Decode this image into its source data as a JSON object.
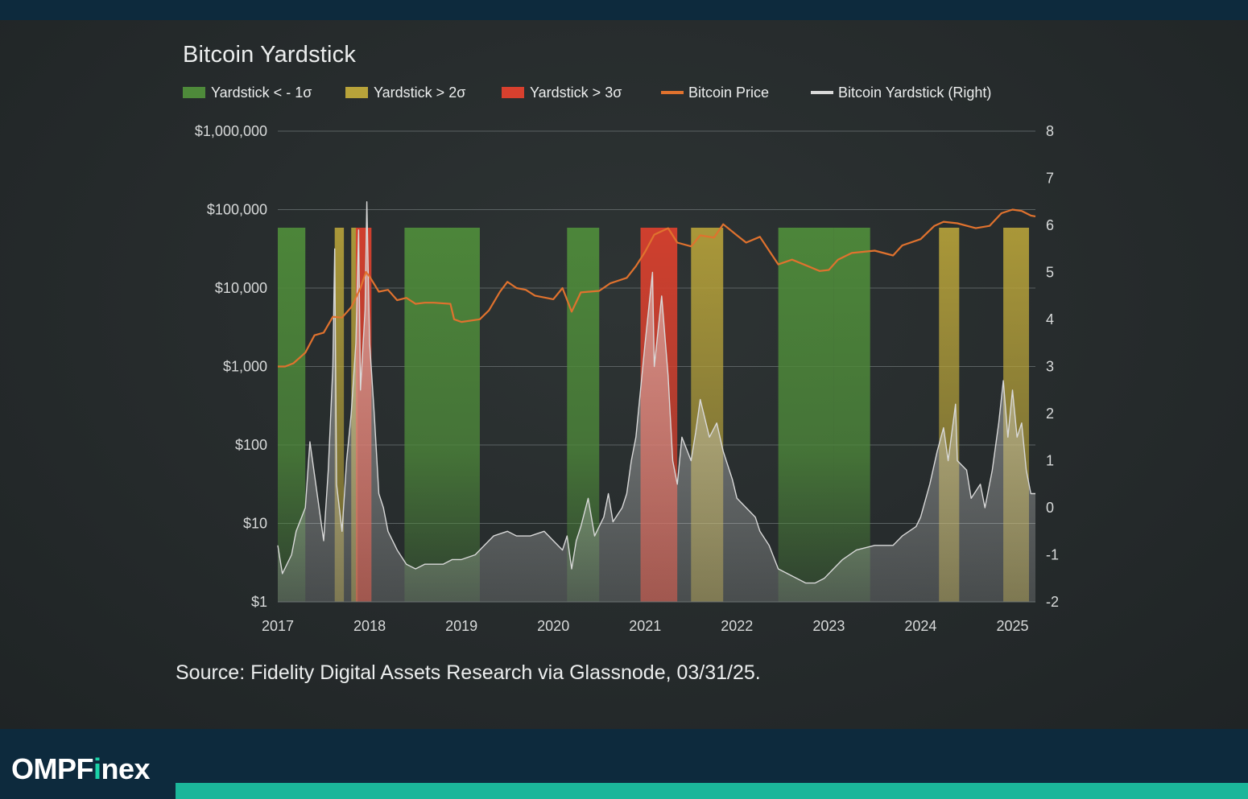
{
  "chart_title": "Bitcoin Yardstick",
  "legend": [
    {
      "label": "Yardstick < - 1σ",
      "kind": "box",
      "color": "#4e8a3a"
    },
    {
      "label": "Yardstick > 2σ",
      "kind": "box",
      "color": "#b8a33a"
    },
    {
      "label": "Yardstick > 3σ",
      "kind": "box",
      "color": "#d8402e"
    },
    {
      "label": "Bitcoin Price",
      "kind": "line",
      "color": "#e0722e"
    },
    {
      "label": "Bitcoin Yardstick (Right)",
      "kind": "line",
      "color": "#d9d9d9"
    }
  ],
  "source": "Source: Fidelity Digital Assets Research via Glassnode, 03/31/25.",
  "brand": {
    "before": "OMPF",
    "highlight": "i",
    "after": "nex",
    "accent_color": "#1bb69a"
  },
  "chart_data": {
    "type": "line",
    "title": "Bitcoin Yardstick",
    "x_ticks": [
      "2017",
      "2018",
      "2019",
      "2020",
      "2021",
      "2022",
      "2023",
      "2024",
      "2025"
    ],
    "xlim": [
      2017.0,
      2025.25
    ],
    "y_left": {
      "scale": "log",
      "ylim": [
        1,
        1000000
      ],
      "tick_values": [
        1,
        10,
        100,
        1000,
        10000,
        100000,
        1000000
      ],
      "tick_labels": [
        "$1",
        "$10",
        "$100",
        "$1,000",
        "$10,000",
        "$100,000",
        "$1,000,000"
      ]
    },
    "y_right": {
      "scale": "linear",
      "ylim": [
        -2,
        8
      ],
      "tick_values": [
        -2,
        -1,
        0,
        1,
        2,
        3,
        4,
        5,
        6,
        7,
        8
      ],
      "tick_labels": [
        "-2",
        "-1",
        "0",
        "1",
        "2",
        "3",
        "4",
        "5",
        "6",
        "7",
        "8"
      ]
    },
    "grid": true,
    "legend_position": "top-left",
    "series": [
      {
        "name": "Bitcoin Price",
        "axis": "left",
        "color": "#e0722e",
        "points": [
          [
            2017.0,
            1000
          ],
          [
            2017.08,
            1000
          ],
          [
            2017.17,
            1100
          ],
          [
            2017.3,
            1500
          ],
          [
            2017.4,
            2500
          ],
          [
            2017.5,
            2700
          ],
          [
            2017.6,
            4300
          ],
          [
            2017.7,
            4200
          ],
          [
            2017.8,
            5700
          ],
          [
            2017.9,
            10000
          ],
          [
            2017.96,
            16000
          ],
          [
            2018.0,
            14000
          ],
          [
            2018.1,
            9000
          ],
          [
            2018.2,
            9500
          ],
          [
            2018.3,
            7000
          ],
          [
            2018.4,
            7500
          ],
          [
            2018.5,
            6300
          ],
          [
            2018.6,
            6500
          ],
          [
            2018.7,
            6500
          ],
          [
            2018.88,
            6300
          ],
          [
            2018.92,
            4000
          ],
          [
            2019.0,
            3700
          ],
          [
            2019.2,
            4000
          ],
          [
            2019.3,
            5200
          ],
          [
            2019.42,
            9000
          ],
          [
            2019.5,
            12000
          ],
          [
            2019.6,
            10000
          ],
          [
            2019.7,
            9500
          ],
          [
            2019.8,
            8000
          ],
          [
            2020.0,
            7200
          ],
          [
            2020.1,
            10000
          ],
          [
            2020.2,
            5000
          ],
          [
            2020.3,
            8800
          ],
          [
            2020.5,
            9200
          ],
          [
            2020.62,
            11500
          ],
          [
            2020.8,
            13500
          ],
          [
            2020.9,
            19000
          ],
          [
            2021.0,
            29000
          ],
          [
            2021.1,
            48000
          ],
          [
            2021.25,
            58000
          ],
          [
            2021.35,
            38000
          ],
          [
            2021.5,
            34000
          ],
          [
            2021.6,
            47000
          ],
          [
            2021.75,
            44000
          ],
          [
            2021.85,
            65000
          ],
          [
            2022.0,
            47000
          ],
          [
            2022.1,
            38000
          ],
          [
            2022.25,
            45000
          ],
          [
            2022.35,
            30000
          ],
          [
            2022.45,
            20000
          ],
          [
            2022.6,
            23000
          ],
          [
            2022.75,
            19500
          ],
          [
            2022.9,
            16500
          ],
          [
            2023.0,
            17000
          ],
          [
            2023.1,
            23000
          ],
          [
            2023.25,
            28000
          ],
          [
            2023.5,
            30000
          ],
          [
            2023.7,
            26000
          ],
          [
            2023.8,
            35000
          ],
          [
            2024.0,
            42000
          ],
          [
            2024.15,
            62000
          ],
          [
            2024.25,
            70000
          ],
          [
            2024.4,
            67000
          ],
          [
            2024.6,
            58000
          ],
          [
            2024.75,
            62000
          ],
          [
            2024.88,
            90000
          ],
          [
            2025.0,
            100000
          ],
          [
            2025.1,
            96000
          ],
          [
            2025.2,
            84000
          ],
          [
            2025.25,
            82000
          ]
        ]
      },
      {
        "name": "Bitcoin Yardstick (Right)",
        "axis": "right",
        "color": "#d9d9d9",
        "points": [
          [
            2017.0,
            -0.8
          ],
          [
            2017.05,
            -1.4
          ],
          [
            2017.1,
            -1.2
          ],
          [
            2017.15,
            -1.0
          ],
          [
            2017.2,
            -0.5
          ],
          [
            2017.3,
            0.0
          ],
          [
            2017.35,
            1.4
          ],
          [
            2017.4,
            0.7
          ],
          [
            2017.45,
            0.0
          ],
          [
            2017.5,
            -0.7
          ],
          [
            2017.55,
            0.8
          ],
          [
            2017.6,
            3.0
          ],
          [
            2017.62,
            5.5
          ],
          [
            2017.64,
            0.5
          ],
          [
            2017.7,
            -0.5
          ],
          [
            2017.75,
            1.0
          ],
          [
            2017.8,
            2.0
          ],
          [
            2017.85,
            3.5
          ],
          [
            2017.88,
            5.9
          ],
          [
            2017.9,
            2.5
          ],
          [
            2017.95,
            4.2
          ],
          [
            2017.97,
            6.5
          ],
          [
            2018.0,
            3.5
          ],
          [
            2018.05,
            2.0
          ],
          [
            2018.1,
            0.3
          ],
          [
            2018.15,
            0.0
          ],
          [
            2018.2,
            -0.5
          ],
          [
            2018.3,
            -0.9
          ],
          [
            2018.4,
            -1.2
          ],
          [
            2018.5,
            -1.3
          ],
          [
            2018.6,
            -1.2
          ],
          [
            2018.7,
            -1.2
          ],
          [
            2018.8,
            -1.2
          ],
          [
            2018.9,
            -1.1
          ],
          [
            2019.0,
            -1.1
          ],
          [
            2019.15,
            -1.0
          ],
          [
            2019.25,
            -0.8
          ],
          [
            2019.35,
            -0.6
          ],
          [
            2019.5,
            -0.5
          ],
          [
            2019.6,
            -0.6
          ],
          [
            2019.75,
            -0.6
          ],
          [
            2019.9,
            -0.5
          ],
          [
            2020.0,
            -0.7
          ],
          [
            2020.1,
            -0.9
          ],
          [
            2020.15,
            -0.6
          ],
          [
            2020.2,
            -1.3
          ],
          [
            2020.25,
            -0.7
          ],
          [
            2020.3,
            -0.4
          ],
          [
            2020.38,
            0.2
          ],
          [
            2020.45,
            -0.6
          ],
          [
            2020.55,
            -0.2
          ],
          [
            2020.6,
            0.3
          ],
          [
            2020.65,
            -0.3
          ],
          [
            2020.75,
            0.0
          ],
          [
            2020.8,
            0.3
          ],
          [
            2020.85,
            1.0
          ],
          [
            2020.9,
            1.5
          ],
          [
            2021.0,
            3.5
          ],
          [
            2021.08,
            5.0
          ],
          [
            2021.1,
            3.0
          ],
          [
            2021.18,
            4.5
          ],
          [
            2021.25,
            2.8
          ],
          [
            2021.3,
            1.0
          ],
          [
            2021.35,
            0.5
          ],
          [
            2021.4,
            1.5
          ],
          [
            2021.5,
            1.0
          ],
          [
            2021.55,
            1.6
          ],
          [
            2021.6,
            2.3
          ],
          [
            2021.7,
            1.5
          ],
          [
            2021.78,
            1.8
          ],
          [
            2021.85,
            1.2
          ],
          [
            2021.95,
            0.6
          ],
          [
            2022.0,
            0.2
          ],
          [
            2022.1,
            0.0
          ],
          [
            2022.2,
            -0.2
          ],
          [
            2022.25,
            -0.5
          ],
          [
            2022.35,
            -0.8
          ],
          [
            2022.45,
            -1.3
          ],
          [
            2022.55,
            -1.4
          ],
          [
            2022.65,
            -1.5
          ],
          [
            2022.75,
            -1.6
          ],
          [
            2022.85,
            -1.6
          ],
          [
            2022.95,
            -1.5
          ],
          [
            2023.05,
            -1.3
          ],
          [
            2023.15,
            -1.1
          ],
          [
            2023.3,
            -0.9
          ],
          [
            2023.5,
            -0.8
          ],
          [
            2023.7,
            -0.8
          ],
          [
            2023.8,
            -0.6
          ],
          [
            2023.95,
            -0.4
          ],
          [
            2024.0,
            -0.2
          ],
          [
            2024.1,
            0.5
          ],
          [
            2024.18,
            1.2
          ],
          [
            2024.25,
            1.7
          ],
          [
            2024.3,
            1.0
          ],
          [
            2024.38,
            2.2
          ],
          [
            2024.4,
            1.0
          ],
          [
            2024.5,
            0.8
          ],
          [
            2024.55,
            0.2
          ],
          [
            2024.65,
            0.5
          ],
          [
            2024.7,
            0.0
          ],
          [
            2024.78,
            0.8
          ],
          [
            2024.85,
            1.8
          ],
          [
            2024.9,
            2.7
          ],
          [
            2024.95,
            1.5
          ],
          [
            2025.0,
            2.5
          ],
          [
            2025.05,
            1.5
          ],
          [
            2025.1,
            1.8
          ],
          [
            2025.15,
            0.8
          ],
          [
            2025.2,
            0.3
          ],
          [
            2025.25,
            0.3
          ]
        ]
      }
    ],
    "bands": [
      {
        "type": "Yardstick < - 1σ",
        "x": [
          [
            2017.0,
            2017.3
          ],
          [
            2018.38,
            2019.2
          ],
          [
            2020.15,
            2020.5
          ],
          [
            2022.45,
            2023.05
          ],
          [
            2023.05,
            2023.45
          ]
        ]
      },
      {
        "type": "Yardstick > 2σ",
        "x": [
          [
            2017.62,
            2017.72
          ],
          [
            2017.8,
            2017.87
          ],
          [
            2021.5,
            2021.85
          ],
          [
            2024.2,
            2024.42
          ],
          [
            2024.9,
            2025.18
          ]
        ]
      },
      {
        "type": "Yardstick > 3σ",
        "x": [
          [
            2017.85,
            2018.02
          ],
          [
            2020.95,
            2021.35
          ]
        ]
      }
    ]
  }
}
